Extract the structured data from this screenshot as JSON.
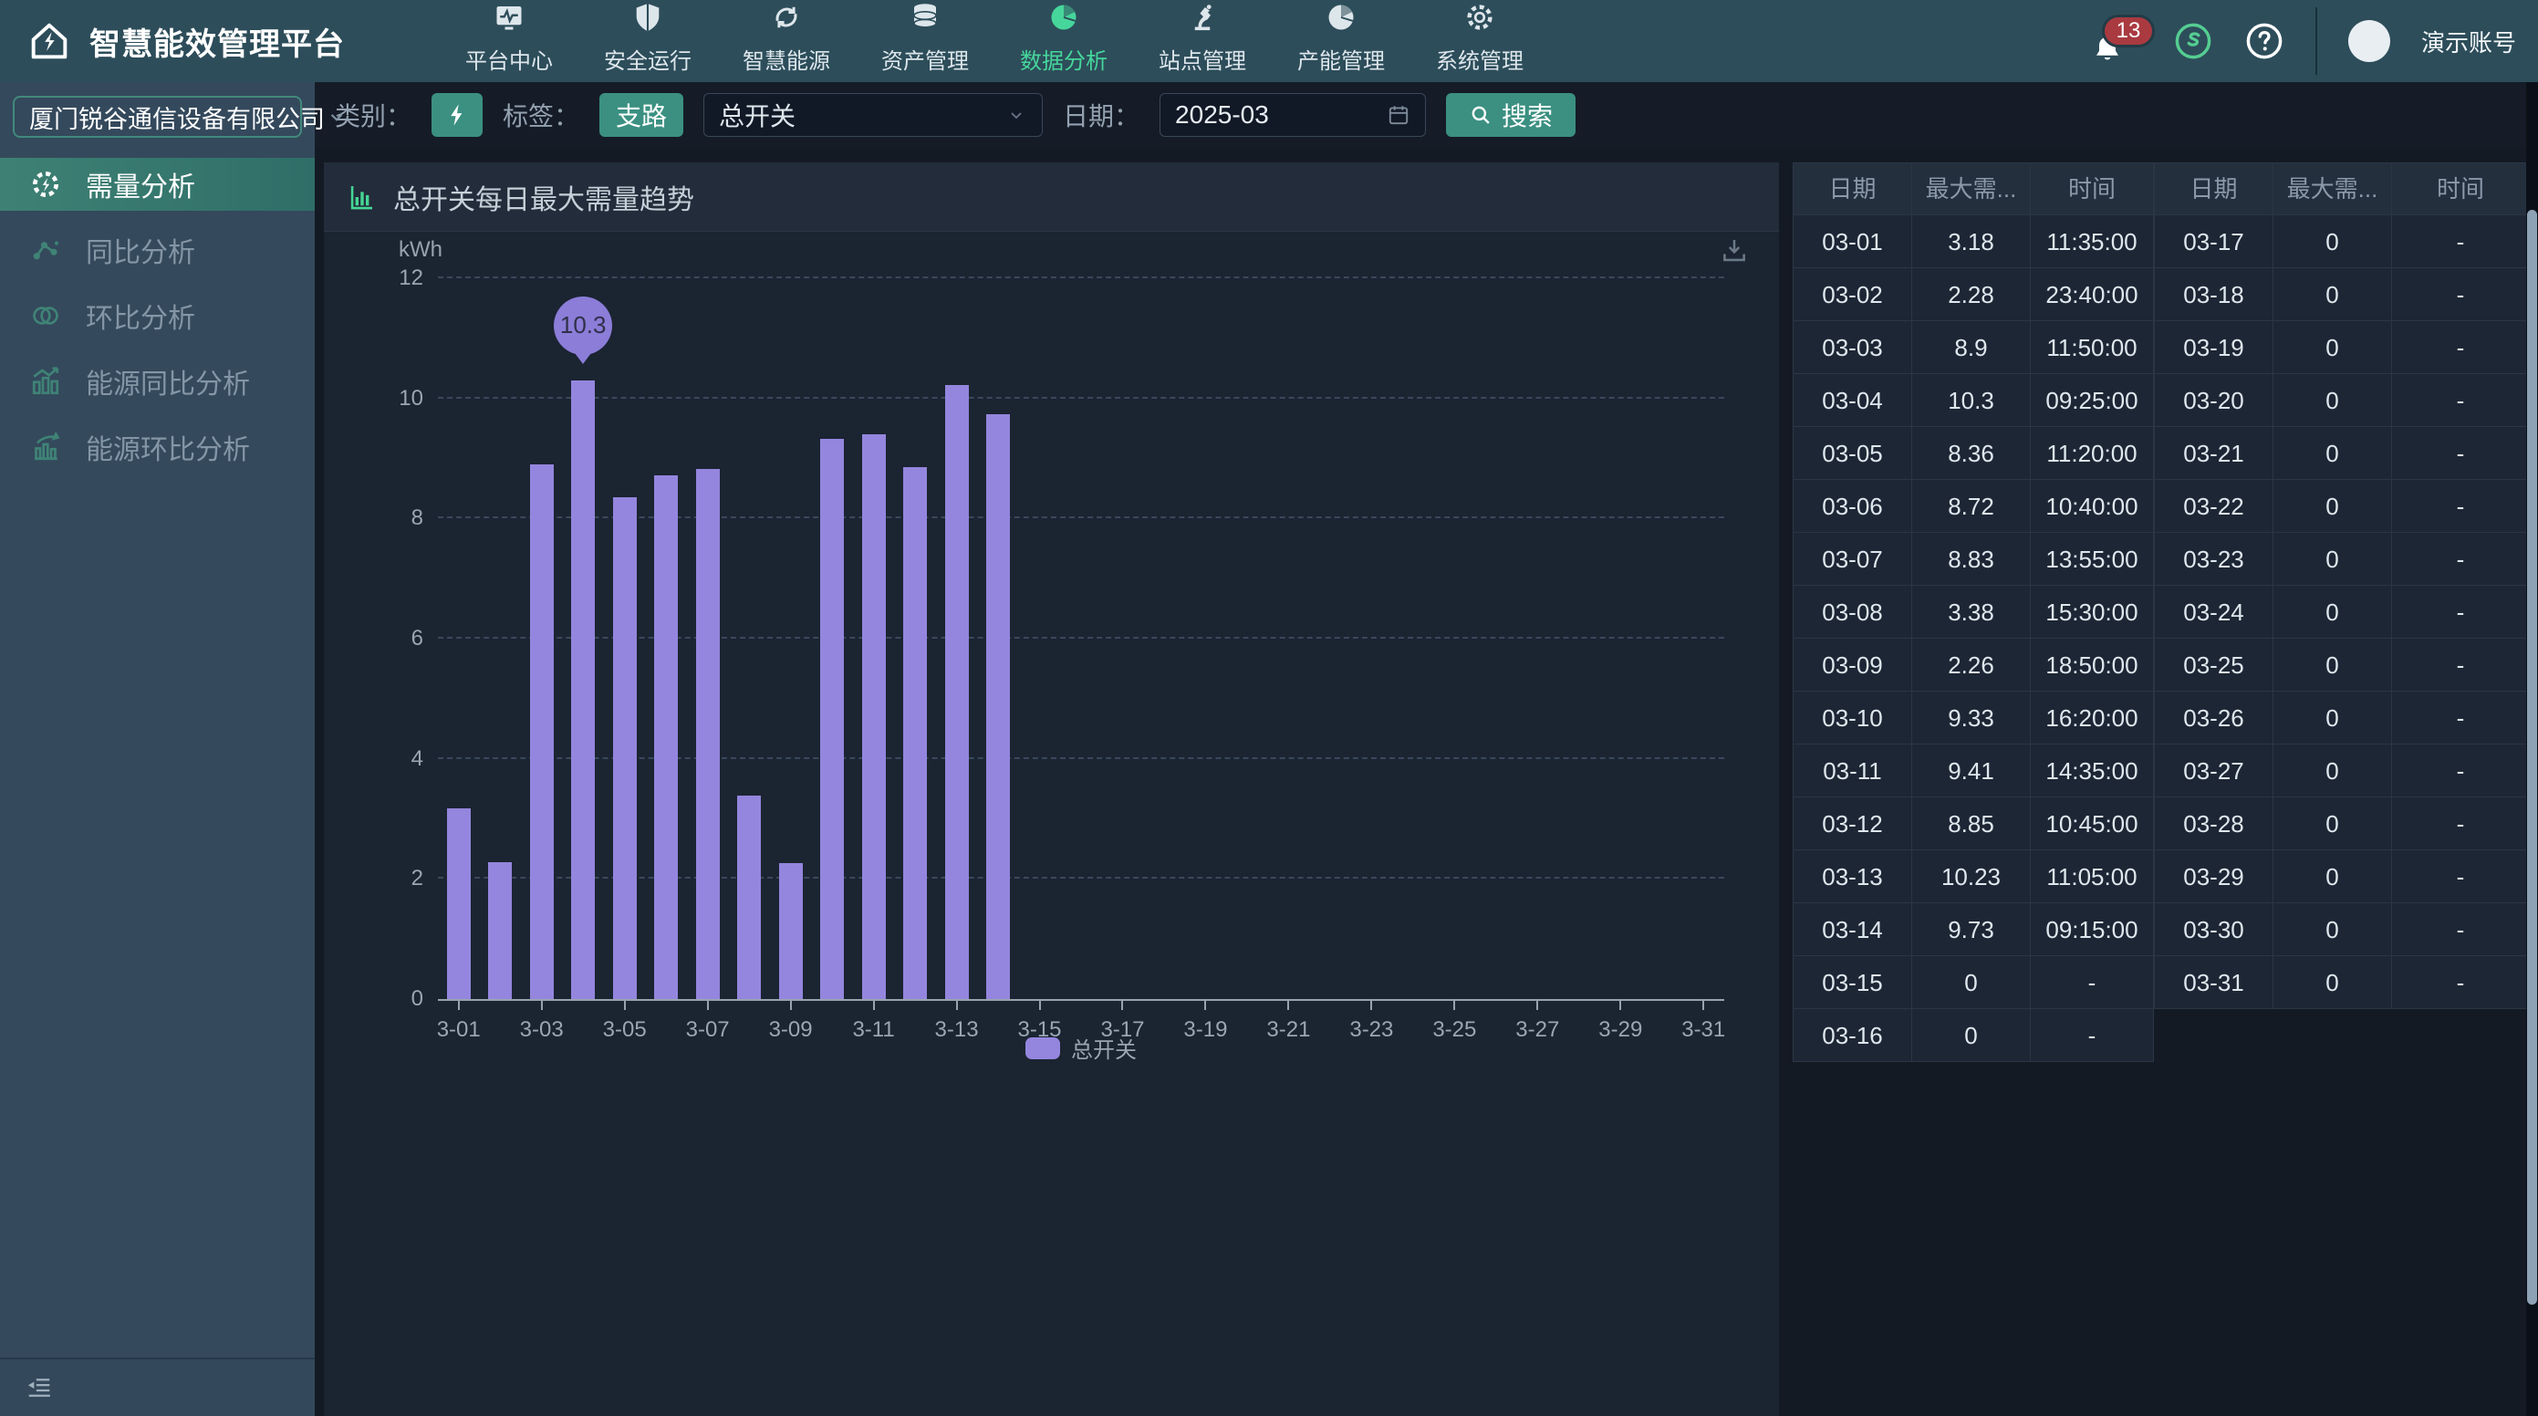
{
  "navbar": {
    "title": "智慧能效管理平台",
    "items": [
      {
        "label": "平台中心",
        "icon": "monitor-pulse-icon",
        "active": false
      },
      {
        "label": "安全运行",
        "icon": "shield-icon",
        "active": false
      },
      {
        "label": "智慧能源",
        "icon": "recycle-icon",
        "active": false
      },
      {
        "label": "资产管理",
        "icon": "database-icon",
        "active": false
      },
      {
        "label": "数据分析",
        "icon": "pie-chart-icon",
        "active": true
      },
      {
        "label": "站点管理",
        "icon": "robot-arm-icon",
        "active": false
      },
      {
        "label": "产能管理",
        "icon": "pie-chart-icon",
        "active": false
      },
      {
        "label": "系统管理",
        "icon": "gear-icon",
        "active": false
      }
    ],
    "notification_count": "13",
    "account_name": "演示账号"
  },
  "sidebar": {
    "company": "厦门锐谷通信设备有限公司",
    "items": [
      {
        "label": "需量分析",
        "icon": "gear-bolt-icon",
        "active": true
      },
      {
        "label": "同比分析",
        "icon": "share-nodes-icon",
        "active": false
      },
      {
        "label": "环比分析",
        "icon": "venn-circles-icon",
        "active": false
      },
      {
        "label": "能源同比分析",
        "icon": "bar-trend-icon",
        "active": false
      },
      {
        "label": "能源环比分析",
        "icon": "bar-arrow-icon",
        "active": false
      }
    ]
  },
  "filters": {
    "category_label": "类别：",
    "tag_label": "标签：",
    "tag_button": "支路",
    "switch_select_value": "总开关",
    "date_label": "日期：",
    "date_value": "2025-03",
    "search_button": "搜索"
  },
  "chart": {
    "title": "总开关每日最大需量趋势",
    "unit": "kWh",
    "legend": "总开关"
  },
  "chart_data": {
    "type": "bar",
    "title": "总开关每日最大需量趋势",
    "ylabel": "kWh",
    "ylim": [
      0,
      12
    ],
    "yticks": [
      0,
      2,
      4,
      6,
      8,
      10,
      12
    ],
    "grid": "dashed",
    "legend_position": "bottom",
    "series_name": "总开关",
    "bar_color": "#9486de",
    "categories": [
      "3-01",
      "3-02",
      "3-03",
      "3-04",
      "3-05",
      "3-06",
      "3-07",
      "3-08",
      "3-09",
      "3-10",
      "3-11",
      "3-12",
      "3-13",
      "3-14",
      "3-15",
      "3-16",
      "3-17",
      "3-18",
      "3-19",
      "3-20",
      "3-21",
      "3-22",
      "3-23",
      "3-24",
      "3-25",
      "3-26",
      "3-27",
      "3-28",
      "3-29",
      "3-30",
      "3-31"
    ],
    "values": [
      3.18,
      2.28,
      8.9,
      10.3,
      8.36,
      8.72,
      8.83,
      3.38,
      2.26,
      9.33,
      9.41,
      8.85,
      10.23,
      9.73,
      0,
      0,
      0,
      0,
      0,
      0,
      0,
      0,
      0,
      0,
      0,
      0,
      0,
      0,
      0,
      0,
      0
    ],
    "x_tick_labels": [
      "3-01",
      "3-03",
      "3-05",
      "3-07",
      "3-09",
      "3-11",
      "3-13",
      "3-15",
      "3-17",
      "3-19",
      "3-21",
      "3-23",
      "3-25",
      "3-27",
      "3-29",
      "3-31"
    ],
    "annotation": {
      "category": "3-04",
      "text": "10.3"
    }
  },
  "table": {
    "headers": [
      "日期",
      "最大需...",
      "时间"
    ],
    "left_rows": [
      [
        "03-01",
        "3.18",
        "11:35:00"
      ],
      [
        "03-02",
        "2.28",
        "23:40:00"
      ],
      [
        "03-03",
        "8.9",
        "11:50:00"
      ],
      [
        "03-04",
        "10.3",
        "09:25:00"
      ],
      [
        "03-05",
        "8.36",
        "11:20:00"
      ],
      [
        "03-06",
        "8.72",
        "10:40:00"
      ],
      [
        "03-07",
        "8.83",
        "13:55:00"
      ],
      [
        "03-08",
        "3.38",
        "15:30:00"
      ],
      [
        "03-09",
        "2.26",
        "18:50:00"
      ],
      [
        "03-10",
        "9.33",
        "16:20:00"
      ],
      [
        "03-11",
        "9.41",
        "14:35:00"
      ],
      [
        "03-12",
        "8.85",
        "10:45:00"
      ],
      [
        "03-13",
        "10.23",
        "11:05:00"
      ],
      [
        "03-14",
        "9.73",
        "09:15:00"
      ],
      [
        "03-15",
        "0",
        "-"
      ],
      [
        "03-16",
        "0",
        "-"
      ]
    ],
    "right_rows": [
      [
        "03-17",
        "0",
        "-"
      ],
      [
        "03-18",
        "0",
        "-"
      ],
      [
        "03-19",
        "0",
        "-"
      ],
      [
        "03-20",
        "0",
        "-"
      ],
      [
        "03-21",
        "0",
        "-"
      ],
      [
        "03-22",
        "0",
        "-"
      ],
      [
        "03-23",
        "0",
        "-"
      ],
      [
        "03-24",
        "0",
        "-"
      ],
      [
        "03-25",
        "0",
        "-"
      ],
      [
        "03-26",
        "0",
        "-"
      ],
      [
        "03-27",
        "0",
        "-"
      ],
      [
        "03-28",
        "0",
        "-"
      ],
      [
        "03-29",
        "0",
        "-"
      ],
      [
        "03-30",
        "0",
        "-"
      ],
      [
        "03-31",
        "0",
        "-"
      ]
    ]
  },
  "colors": {
    "accent_green": "#46d69b",
    "teal_button": "#3b9081",
    "bar_purple": "#9486de",
    "tooltip_purple": "#8b7dd8",
    "badge_red": "#a93a40",
    "navbar_bg": "#2d4d5a",
    "sidebar_bg": "#34495c",
    "panel_bg": "#1b2431"
  }
}
